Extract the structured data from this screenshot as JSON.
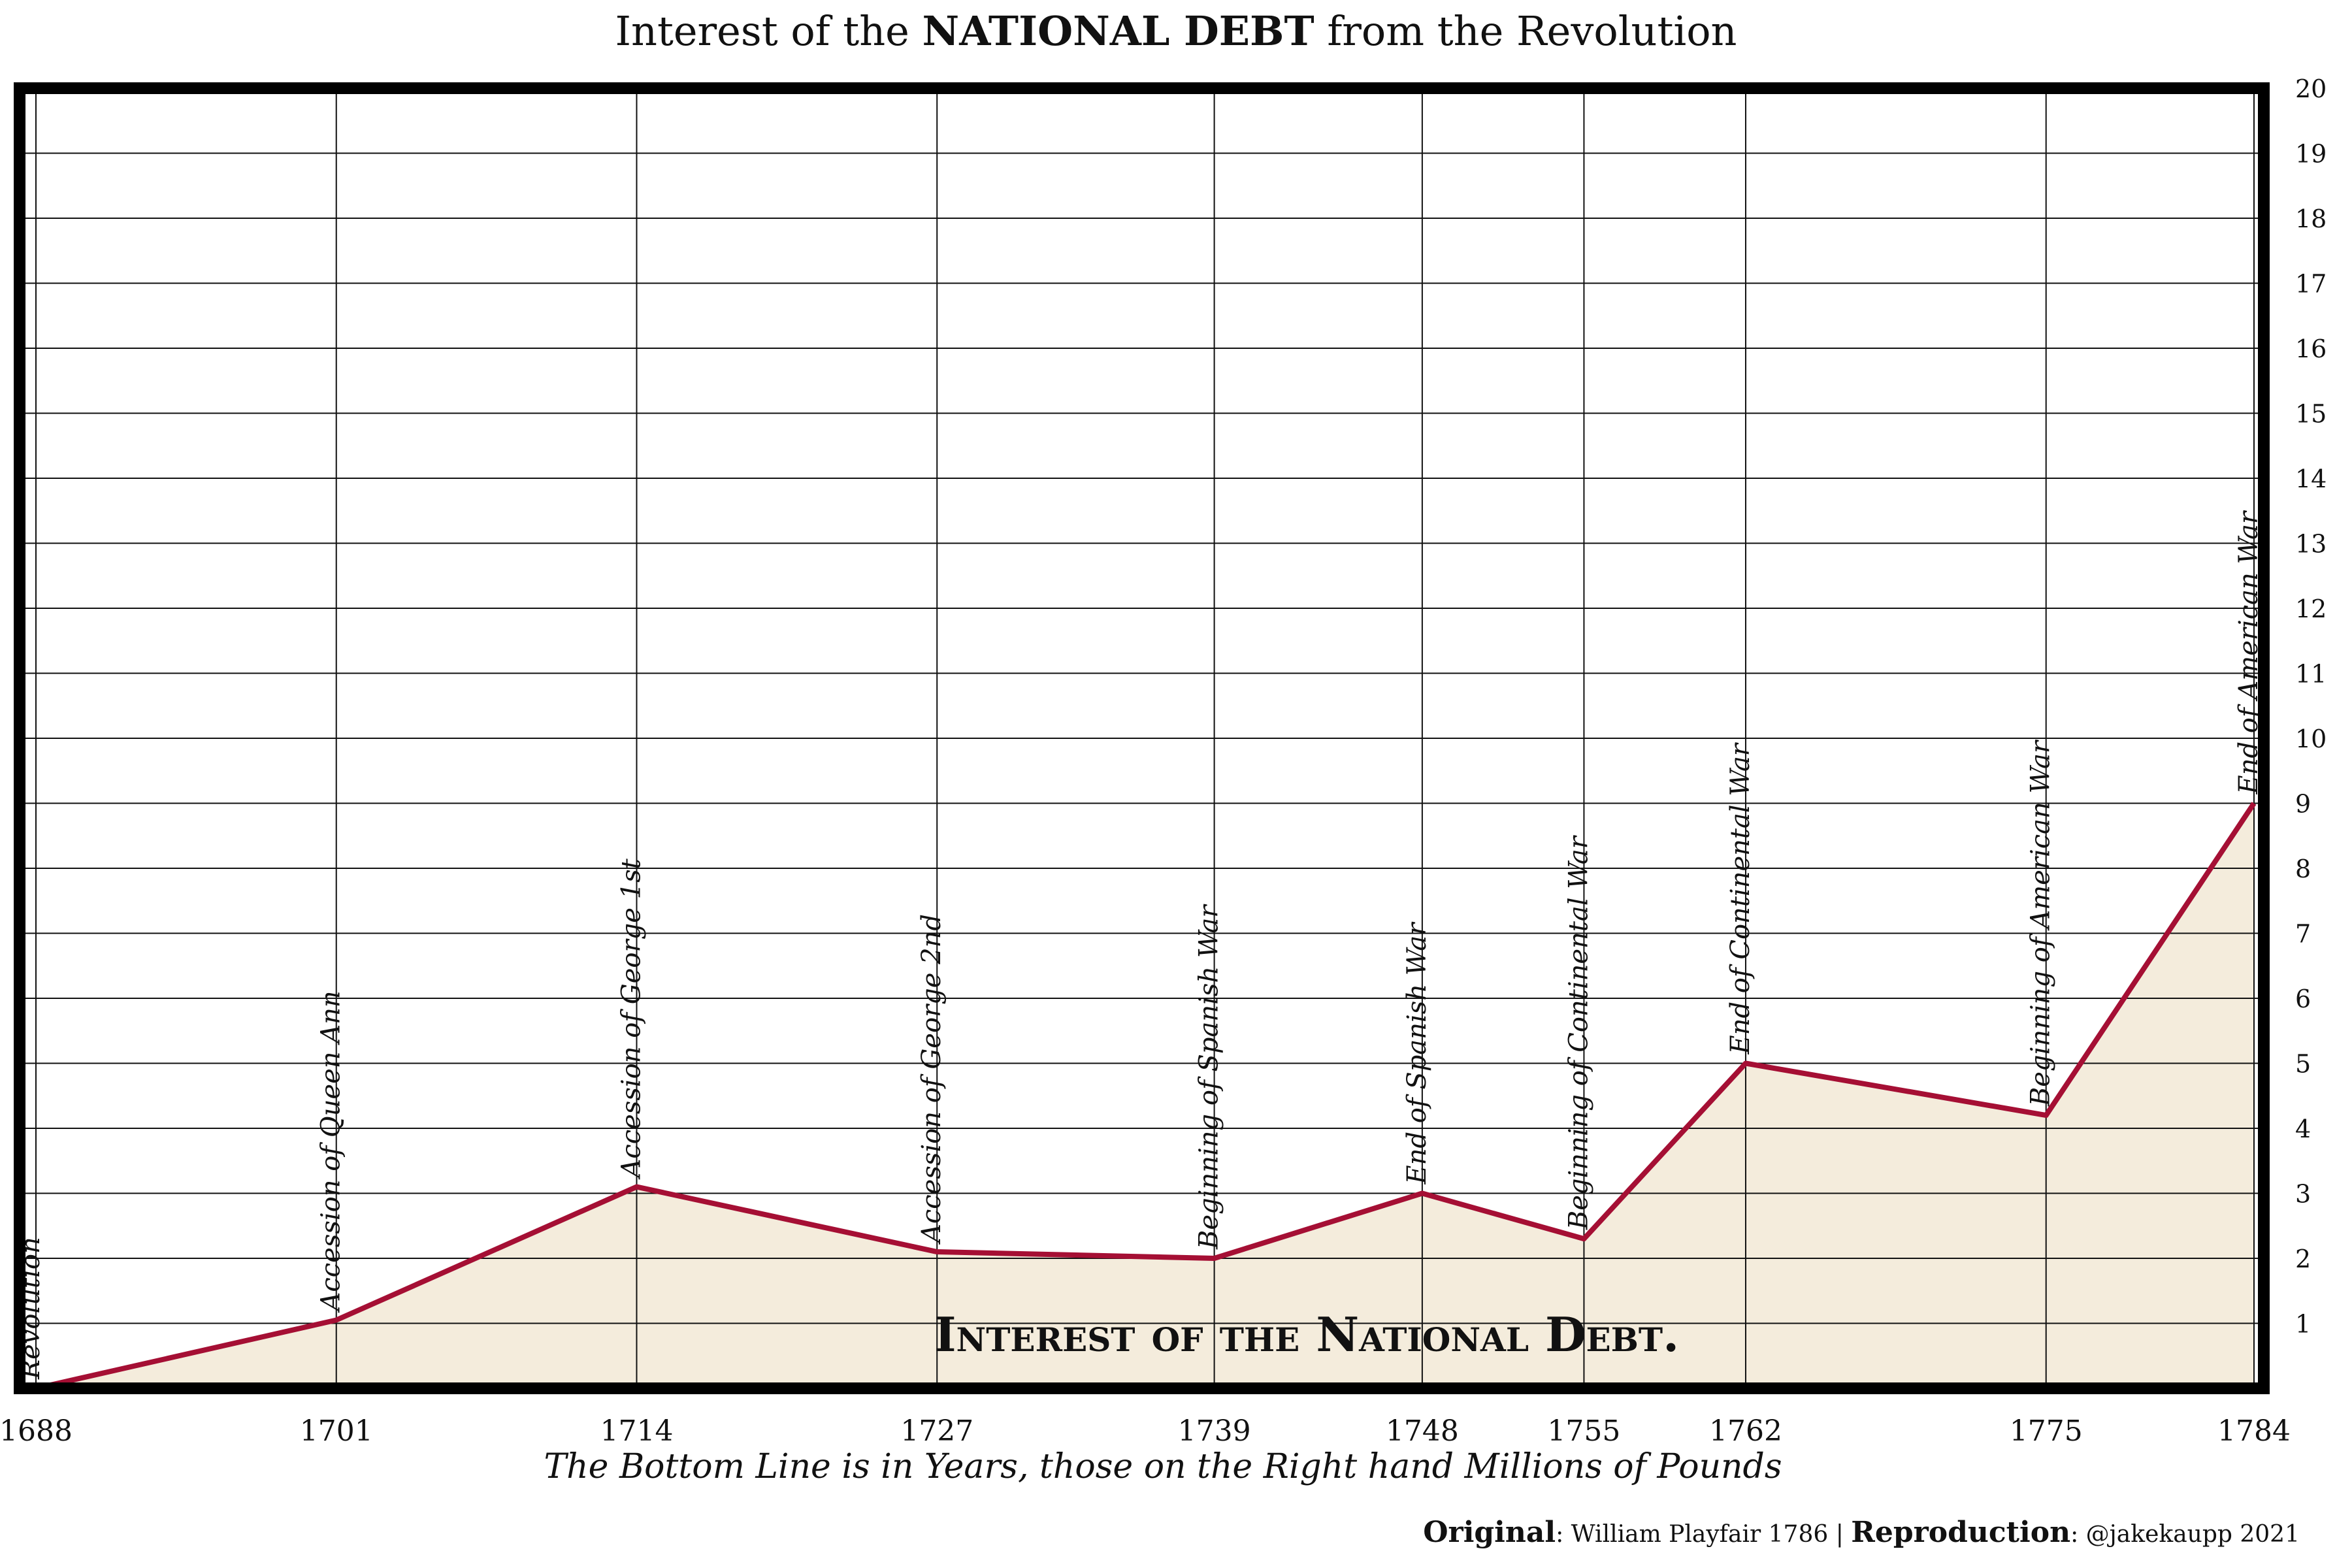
{
  "title": {
    "prefix": "Interest of the ",
    "bold": "NATIONAL DEBT",
    "suffix": " from the Revolution"
  },
  "colors": {
    "line": "#a50f34",
    "fill": "#f4ecdc",
    "grid": "#111111",
    "frame": "#000000"
  },
  "chart_data": {
    "type": "area",
    "x": [
      1688,
      1701,
      1714,
      1727,
      1739,
      1748,
      1755,
      1762,
      1775,
      1784
    ],
    "values": [
      0,
      1.05,
      3.1,
      2.1,
      2.0,
      3.0,
      2.3,
      5.0,
      4.2,
      9.0
    ],
    "annotations": [
      "Revolution",
      "Accession of Queen Ann",
      "Accession of George 1st",
      "Accession of George 2nd",
      "Beginning of Spanish War",
      "End of Spanish War",
      "Beginning of Continental War",
      "End of Continental War",
      "Beginning of American War",
      "End of American War"
    ],
    "xlabel": "The Bottom Line is in Years, those on the Right hand Millions of Pounds",
    "ylabel": "",
    "ylim": [
      0,
      20
    ],
    "yticks": [
      1,
      2,
      3,
      4,
      5,
      6,
      7,
      8,
      9,
      10,
      11,
      12,
      13,
      14,
      15,
      16,
      17,
      18,
      19,
      20
    ],
    "inner_label": "Interest of the National Debt.",
    "grid": true
  },
  "credits": {
    "original_label": "Original",
    "original_text": ": William Playfair 1786 | ",
    "reproduction_label": "Reproduction",
    "reproduction_text": ": @jakekaupp 2021"
  }
}
